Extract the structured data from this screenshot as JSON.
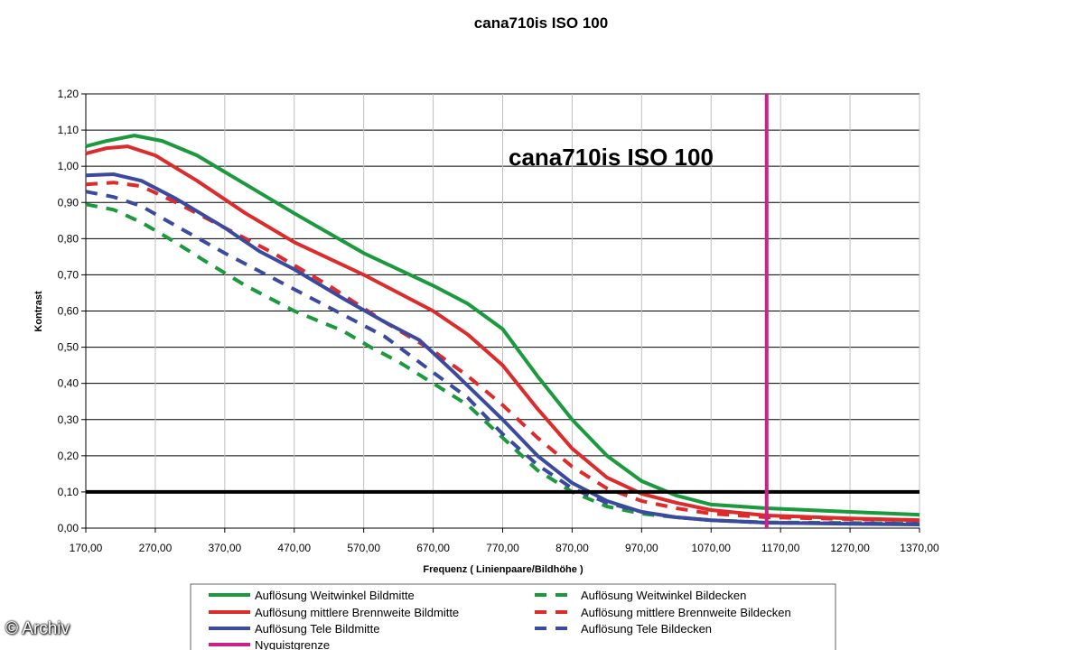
{
  "credit": "© Archiv",
  "chart_data": {
    "type": "line",
    "title": "cana710is ISO 100",
    "inner_title": "cana710is ISO 100",
    "xlabel": "Frequenz ( Linienpaare/Bildhöhe )",
    "ylabel": "Kontrast",
    "xlim": [
      170,
      1370
    ],
    "ylim": [
      0,
      1.2
    ],
    "x_ticks": [
      "170,00",
      "270,00",
      "370,00",
      "470,00",
      "570,00",
      "670,00",
      "770,00",
      "870,00",
      "970,00",
      "1070,00",
      "1170,00",
      "1270,00",
      "1370,00"
    ],
    "y_ticks": [
      "0,00",
      "0,10",
      "0,20",
      "0,30",
      "0,40",
      "0,50",
      "0,60",
      "0,70",
      "0,80",
      "0,90",
      "1,00",
      "1,10",
      "1,20"
    ],
    "grid": true,
    "legend_position": "bottom",
    "threshold_line": {
      "y": 0.1,
      "color": "#000000"
    },
    "nyquist_line": {
      "x": 1150,
      "color": "#cc2288",
      "name": "Nyquistgrenze"
    },
    "series": [
      {
        "name": "Auflösung Weitwinkel Bildmitte",
        "color": "#1a9a3c",
        "dash": false,
        "points": [
          [
            170,
            1.055
          ],
          [
            200,
            1.07
          ],
          [
            240,
            1.085
          ],
          [
            280,
            1.07
          ],
          [
            330,
            1.03
          ],
          [
            400,
            0.95
          ],
          [
            470,
            0.87
          ],
          [
            570,
            0.76
          ],
          [
            670,
            0.67
          ],
          [
            720,
            0.62
          ],
          [
            770,
            0.55
          ],
          [
            820,
            0.42
          ],
          [
            870,
            0.3
          ],
          [
            920,
            0.2
          ],
          [
            970,
            0.13
          ],
          [
            1020,
            0.09
          ],
          [
            1070,
            0.065
          ],
          [
            1150,
            0.055
          ],
          [
            1270,
            0.045
          ],
          [
            1370,
            0.037
          ]
        ]
      },
      {
        "name": "Auflösung mittlere Brennweite Bildmitte",
        "color": "#dd2a2a",
        "dash": false,
        "points": [
          [
            170,
            1.035
          ],
          [
            200,
            1.05
          ],
          [
            230,
            1.055
          ],
          [
            270,
            1.03
          ],
          [
            330,
            0.96
          ],
          [
            400,
            0.87
          ],
          [
            470,
            0.79
          ],
          [
            570,
            0.7
          ],
          [
            670,
            0.6
          ],
          [
            720,
            0.535
          ],
          [
            770,
            0.45
          ],
          [
            820,
            0.33
          ],
          [
            870,
            0.22
          ],
          [
            920,
            0.14
          ],
          [
            970,
            0.095
          ],
          [
            1020,
            0.07
          ],
          [
            1070,
            0.05
          ],
          [
            1150,
            0.035
          ],
          [
            1270,
            0.027
          ],
          [
            1370,
            0.022
          ]
        ]
      },
      {
        "name": "Auflösung Tele Bildmitte",
        "color": "#3a4a9e",
        "dash": false,
        "points": [
          [
            170,
            0.975
          ],
          [
            210,
            0.978
          ],
          [
            250,
            0.96
          ],
          [
            300,
            0.91
          ],
          [
            370,
            0.83
          ],
          [
            420,
            0.765
          ],
          [
            470,
            0.715
          ],
          [
            540,
            0.635
          ],
          [
            600,
            0.57
          ],
          [
            650,
            0.52
          ],
          [
            700,
            0.43
          ],
          [
            770,
            0.3
          ],
          [
            820,
            0.2
          ],
          [
            870,
            0.125
          ],
          [
            920,
            0.075
          ],
          [
            970,
            0.045
          ],
          [
            1020,
            0.03
          ],
          [
            1070,
            0.022
          ],
          [
            1150,
            0.015
          ],
          [
            1270,
            0.012
          ],
          [
            1370,
            0.01
          ]
        ]
      },
      {
        "name": "Auflösung Weitwinkel Bildecken",
        "color": "#1a9a3c",
        "dash": true,
        "points": [
          [
            170,
            0.895
          ],
          [
            210,
            0.88
          ],
          [
            250,
            0.845
          ],
          [
            290,
            0.8
          ],
          [
            340,
            0.74
          ],
          [
            400,
            0.67
          ],
          [
            470,
            0.6
          ],
          [
            540,
            0.545
          ],
          [
            580,
            0.5
          ],
          [
            620,
            0.46
          ],
          [
            670,
            0.4
          ],
          [
            720,
            0.34
          ],
          [
            770,
            0.25
          ],
          [
            820,
            0.16
          ],
          [
            870,
            0.1
          ],
          [
            920,
            0.06
          ],
          [
            970,
            0.04
          ],
          [
            1020,
            0.03
          ],
          [
            1070,
            0.022
          ],
          [
            1150,
            0.016
          ],
          [
            1370,
            0.013
          ]
        ]
      },
      {
        "name": "Auflösung mittlere Brennweite Bildecken",
        "color": "#dd2a2a",
        "dash": true,
        "points": [
          [
            170,
            0.95
          ],
          [
            210,
            0.955
          ],
          [
            250,
            0.945
          ],
          [
            300,
            0.9
          ],
          [
            370,
            0.83
          ],
          [
            440,
            0.76
          ],
          [
            520,
            0.67
          ],
          [
            600,
            0.57
          ],
          [
            670,
            0.49
          ],
          [
            720,
            0.42
          ],
          [
            770,
            0.34
          ],
          [
            820,
            0.25
          ],
          [
            870,
            0.17
          ],
          [
            920,
            0.11
          ],
          [
            970,
            0.075
          ],
          [
            1020,
            0.055
          ],
          [
            1070,
            0.04
          ],
          [
            1150,
            0.03
          ],
          [
            1270,
            0.025
          ],
          [
            1370,
            0.022
          ]
        ]
      },
      {
        "name": "Auflösung Tele Bildecken",
        "color": "#3a4a9e",
        "dash": true,
        "points": [
          [
            170,
            0.93
          ],
          [
            210,
            0.915
          ],
          [
            250,
            0.89
          ],
          [
            300,
            0.835
          ],
          [
            370,
            0.76
          ],
          [
            440,
            0.69
          ],
          [
            520,
            0.61
          ],
          [
            600,
            0.53
          ],
          [
            670,
            0.43
          ],
          [
            720,
            0.36
          ],
          [
            770,
            0.26
          ],
          [
            820,
            0.175
          ],
          [
            870,
            0.11
          ],
          [
            920,
            0.07
          ],
          [
            970,
            0.045
          ],
          [
            1020,
            0.03
          ],
          [
            1070,
            0.022
          ],
          [
            1150,
            0.015
          ],
          [
            1370,
            0.012
          ]
        ]
      }
    ]
  }
}
